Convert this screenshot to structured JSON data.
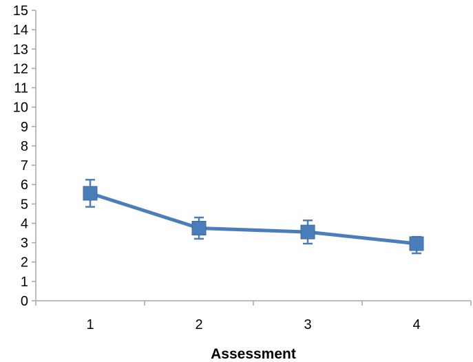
{
  "chart_data": {
    "type": "line",
    "title": "",
    "xlabel": "Assessment",
    "ylabel": "",
    "categories": [
      "1",
      "2",
      "3",
      "4"
    ],
    "ylim": [
      0,
      15
    ],
    "yticks": [
      0,
      1,
      2,
      3,
      4,
      5,
      6,
      7,
      8,
      9,
      10,
      11,
      12,
      13,
      14,
      15
    ],
    "grid": false,
    "series": [
      {
        "values": [
          5.55,
          3.75,
          3.55,
          2.95
        ],
        "error_low": [
          4.85,
          3.2,
          2.95,
          2.45
        ],
        "error_high": [
          6.25,
          4.3,
          4.15,
          3.3
        ],
        "marker": "square",
        "color": "#4A7EBB"
      }
    ],
    "axis_color": "#A6A6A6"
  }
}
